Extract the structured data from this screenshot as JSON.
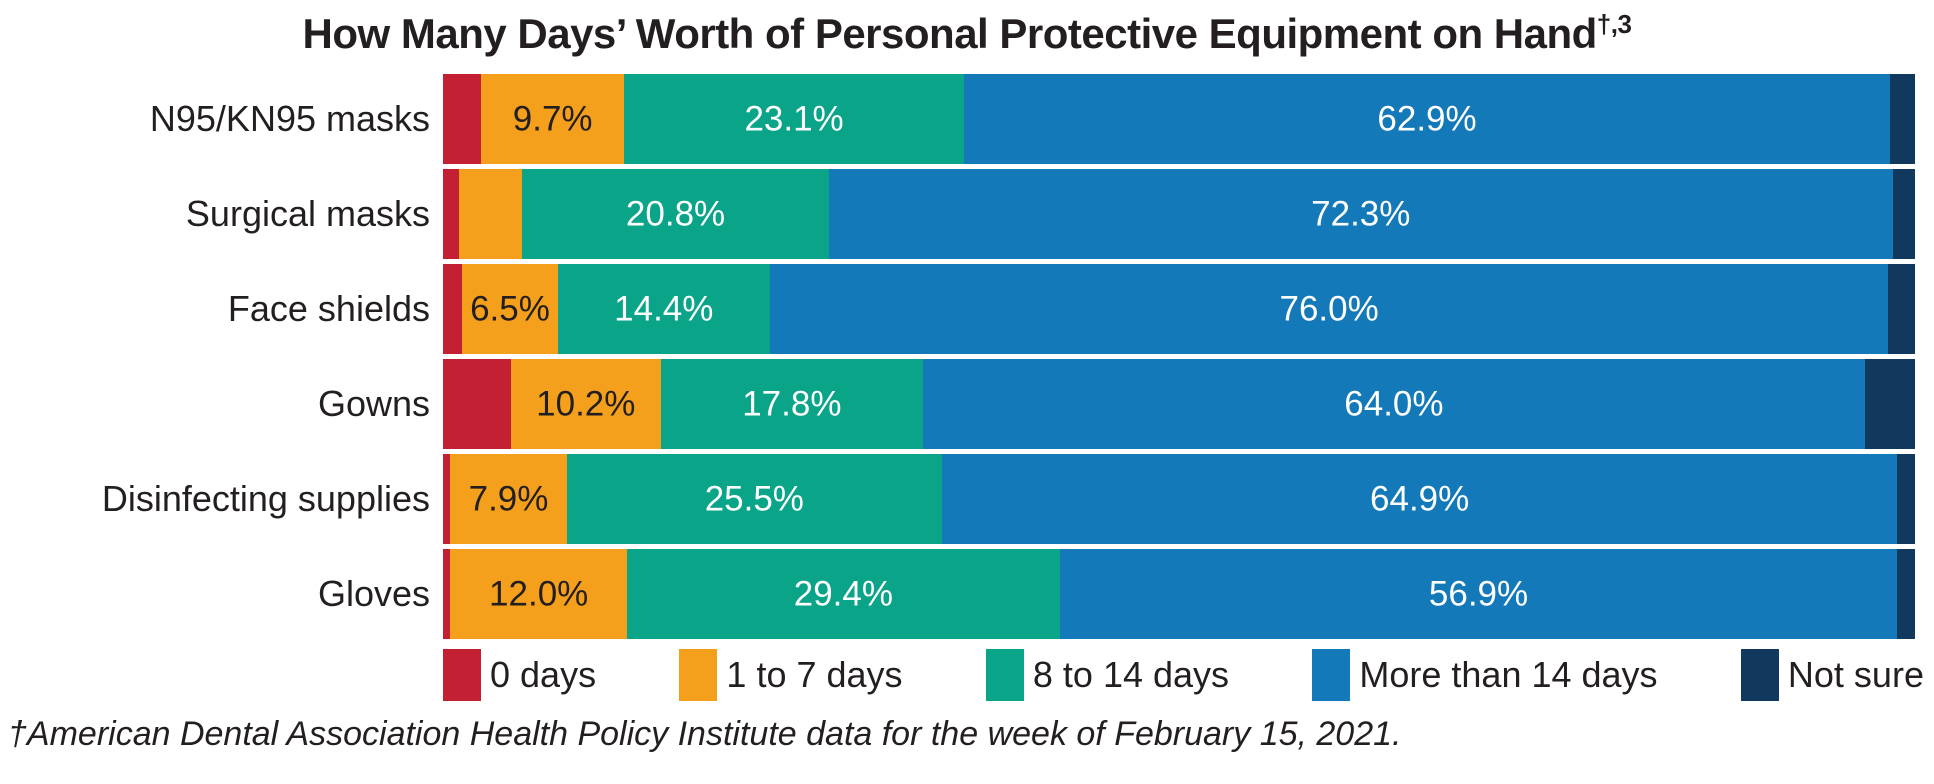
{
  "title": {
    "text": "How Many Days’ Worth of Personal Protective Equipment on Hand",
    "superscript": "†,3"
  },
  "footnote": "†American Dental Association Health Policy Institute data for the week of February 15, 2021.",
  "colors": {
    "red_0_days": "#c32133",
    "orange_1_to_7": "#f5a01d",
    "teal_8_to_14": "#0aa489",
    "blue_more_than_14": "#1479b8",
    "navy_not_sure": "#10395d",
    "text": "#231f20",
    "background": "#ffffff"
  },
  "legend": {
    "items": [
      {
        "label": "0 days",
        "color": "#c32133"
      },
      {
        "label": "1 to 7 days",
        "color": "#f5a01d"
      },
      {
        "label": "8 to 14 days",
        "color": "#0aa489"
      },
      {
        "label": "More than 14 days",
        "color": "#1479b8"
      },
      {
        "label": "Not sure",
        "color": "#10395d"
      }
    ]
  },
  "chart_data": {
    "type": "bar",
    "orientation": "horizontal",
    "stacked": true,
    "units": "percent",
    "title": "How Many Days’ Worth of Personal Protective Equipment on Hand†,3",
    "xlim": [
      0,
      100
    ],
    "grid": false,
    "legend_position": "bottom",
    "categories": [
      "N95/KN95 masks",
      "Surgical masks",
      "Face shields",
      "Gowns",
      "Disinfecting supplies",
      "Gloves"
    ],
    "series": [
      {
        "name": "0 days",
        "color": "#c32133",
        "label_color": "#231f20",
        "values": [
          2.6,
          1.1,
          1.3,
          4.6,
          0.5,
          0.5
        ],
        "note": "unlabeled in figure; estimated from segment widths"
      },
      {
        "name": "1 to 7 days",
        "color": "#f5a01d",
        "label_color": "#231f20",
        "values": [
          9.7,
          4.3,
          6.5,
          10.2,
          7.9,
          12.0
        ],
        "note": "Surgical masks value unlabeled in figure; estimated from width"
      },
      {
        "name": "8 to 14 days",
        "color": "#0aa489",
        "label_color": "#ffffff",
        "values": [
          23.1,
          20.8,
          14.4,
          17.8,
          25.5,
          29.4
        ]
      },
      {
        "name": "More than 14 days",
        "color": "#1479b8",
        "label_color": "#ffffff",
        "values": [
          62.9,
          72.3,
          76.0,
          64.0,
          64.9,
          56.9
        ]
      },
      {
        "name": "Not sure",
        "color": "#10395d",
        "label_color": "#ffffff",
        "values": [
          1.7,
          1.5,
          1.8,
          3.4,
          1.2,
          1.2
        ],
        "note": "unlabeled in figure; estimated from segment widths"
      }
    ],
    "bar_labels": [
      [
        "",
        "9.7%",
        "23.1%",
        "62.9%",
        ""
      ],
      [
        "",
        "",
        "20.8%",
        "72.3%",
        ""
      ],
      [
        "",
        "6.5%",
        "14.4%",
        "76.0%",
        ""
      ],
      [
        "",
        "10.2%",
        "17.8%",
        "64.0%",
        ""
      ],
      [
        "",
        "7.9%",
        "25.5%",
        "64.9%",
        ""
      ],
      [
        "",
        "12.0%",
        "29.4%",
        "56.9%",
        ""
      ]
    ]
  }
}
